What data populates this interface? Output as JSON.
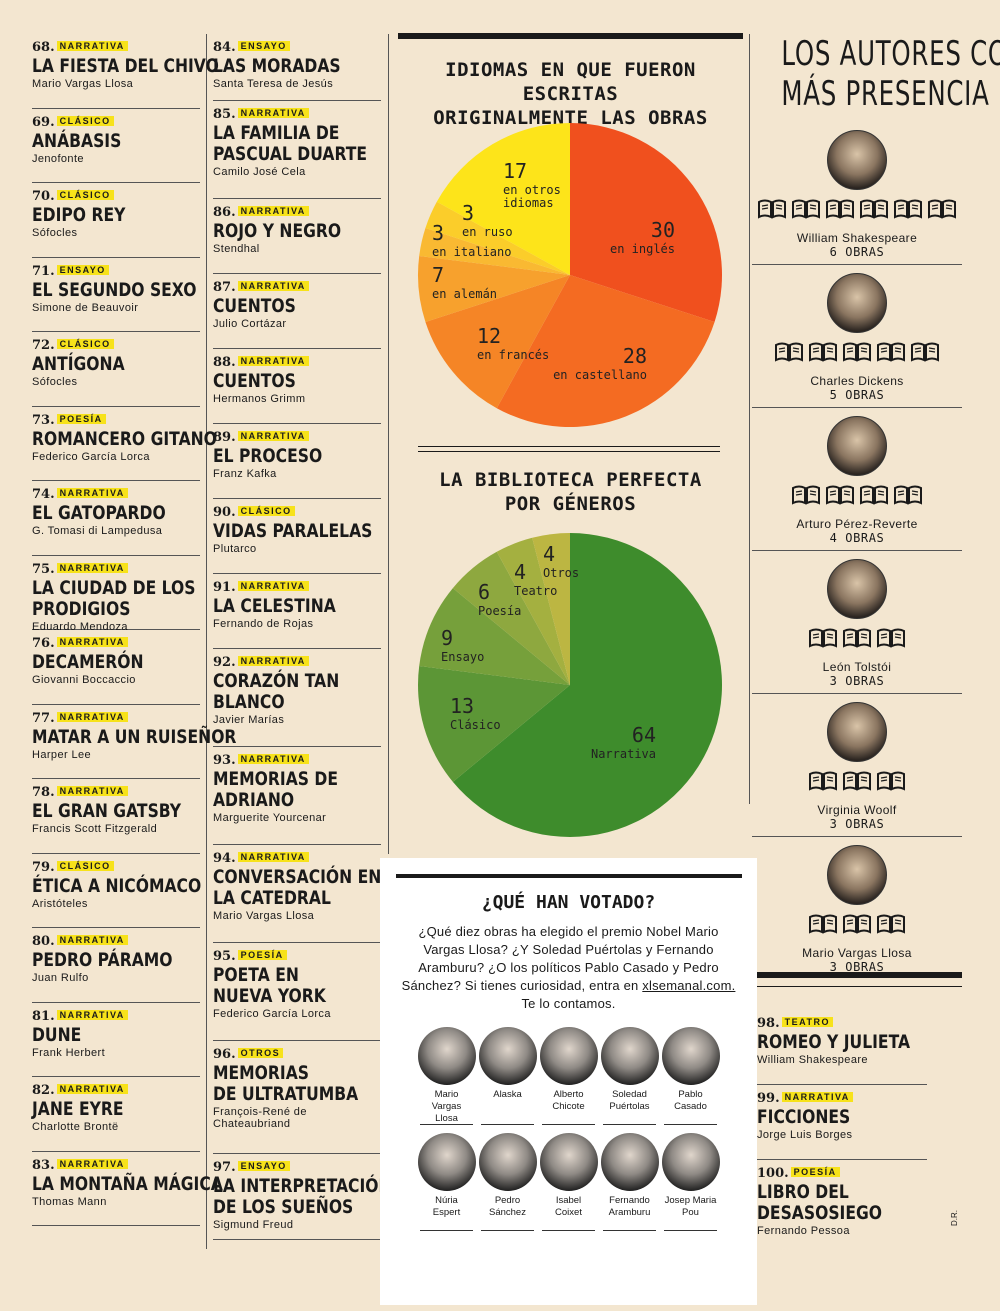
{
  "books_col1": [
    {
      "num": "68.",
      "genre": "NARRATIVA",
      "title": [
        "LA FIESTA DEL CHIVO"
      ],
      "author": "Mario Vargas Llosa"
    },
    {
      "num": "69.",
      "genre": "CLÁSICO",
      "title": [
        "ANÁBASIS"
      ],
      "author": "Jenofonte"
    },
    {
      "num": "70.",
      "genre": "CLÁSICO",
      "title": [
        "EDIPO REY"
      ],
      "author": "Sófocles"
    },
    {
      "num": "71.",
      "genre": "ENSAYO",
      "title": [
        "EL SEGUNDO SEXO"
      ],
      "author": "Simone de Beauvoir"
    },
    {
      "num": "72.",
      "genre": "CLÁSICO",
      "title": [
        "ANTÍGONA"
      ],
      "author": "Sófocles"
    },
    {
      "num": "73.",
      "genre": "POESÍA",
      "title": [
        "ROMANCERO GITANO"
      ],
      "author": "Federico García Lorca"
    },
    {
      "num": "74.",
      "genre": "NARRATIVA",
      "title": [
        "EL GATOPARDO"
      ],
      "author": "G. Tomasi di Lampedusa"
    },
    {
      "num": "75.",
      "genre": "NARRATIVA",
      "title": [
        "LA CIUDAD DE LOS",
        "PRODIGIOS"
      ],
      "author": "Eduardo Mendoza"
    },
    {
      "num": "76.",
      "genre": "NARRATIVA",
      "title": [
        "DECAMERÓN"
      ],
      "author": "Giovanni Boccaccio"
    },
    {
      "num": "77.",
      "genre": "NARRATIVA",
      "title": [
        "MATAR A UN RUISEÑOR"
      ],
      "author": "Harper Lee"
    },
    {
      "num": "78.",
      "genre": "NARRATIVA",
      "title": [
        "EL GRAN GATSBY"
      ],
      "author": "Francis Scott Fitzgerald"
    },
    {
      "num": "79.",
      "genre": "CLÁSICO",
      "title": [
        "ÉTICA A NICÓMACO"
      ],
      "author": "Aristóteles"
    },
    {
      "num": "80.",
      "genre": "NARRATIVA",
      "title": [
        "PEDRO PÁRAMO"
      ],
      "author": "Juan Rulfo"
    },
    {
      "num": "81.",
      "genre": "NARRATIVA",
      "title": [
        "DUNE"
      ],
      "author": "Frank Herbert"
    },
    {
      "num": "82.",
      "genre": "NARRATIVA",
      "title": [
        "JANE EYRE"
      ],
      "author": "Charlotte Brontë"
    },
    {
      "num": "83.",
      "genre": "NARRATIVA",
      "title": [
        "LA MONTAÑA MÁGICA"
      ],
      "author": "Thomas Mann"
    }
  ],
  "books_col2": [
    {
      "num": "84.",
      "genre": "ENSAYO",
      "title": [
        "LAS MORADAS"
      ],
      "author": "Santa Teresa de Jesús"
    },
    {
      "num": "85.",
      "genre": "NARRATIVA",
      "title": [
        "LA FAMILIA DE",
        "PASCUAL DUARTE"
      ],
      "author": "Camilo José Cela"
    },
    {
      "num": "86.",
      "genre": "NARRATIVA",
      "title": [
        "ROJO Y NEGRO"
      ],
      "author": "Stendhal"
    },
    {
      "num": "87.",
      "genre": "NARRATIVA",
      "title": [
        "CUENTOS"
      ],
      "author": "Julio Cortázar"
    },
    {
      "num": "88.",
      "genre": "NARRATIVA",
      "title": [
        "CUENTOS"
      ],
      "author": "Hermanos Grimm"
    },
    {
      "num": "89.",
      "genre": "NARRATIVA",
      "title": [
        "EL PROCESO"
      ],
      "author": "Franz Kafka"
    },
    {
      "num": "90.",
      "genre": "CLÁSICO",
      "title": [
        "VIDAS PARALELAS"
      ],
      "author": "Plutarco"
    },
    {
      "num": "91.",
      "genre": "NARRATIVA",
      "title": [
        "LA CELESTINA"
      ],
      "author": "Fernando de Rojas"
    },
    {
      "num": "92.",
      "genre": "NARRATIVA",
      "title": [
        "CORAZÓN TAN",
        "BLANCO"
      ],
      "author": "Javier Marías"
    },
    {
      "num": "93.",
      "genre": "NARRATIVA",
      "title": [
        "MEMORIAS DE",
        "ADRIANO"
      ],
      "author": "Marguerite Yourcenar"
    },
    {
      "num": "94.",
      "genre": "NARRATIVA",
      "title": [
        "CONVERSACIÓN EN",
        "LA CATEDRAL"
      ],
      "author": "Mario Vargas Llosa"
    },
    {
      "num": "95.",
      "genre": "POESÍA",
      "title": [
        "POETA EN",
        "NUEVA YORK"
      ],
      "author": "Federico García Lorca"
    },
    {
      "num": "96.",
      "genre": "OTROS",
      "title": [
        "MEMORIAS",
        "DE ULTRATUMBA"
      ],
      "author": "François-René de Chateaubriand"
    },
    {
      "num": "97.",
      "genre": "ENSAYO",
      "title": [
        "LA INTERPRETACIÓN",
        "DE LOS SUEÑOS"
      ],
      "author": "Sigmund Freud"
    }
  ],
  "books_col4": [
    {
      "num": "98.",
      "genre": "TEATRO",
      "title": [
        "ROMEO Y JULIETA"
      ],
      "author": "William Shakespeare"
    },
    {
      "num": "99.",
      "genre": "NARRATIVA",
      "title": [
        "FICCIONES"
      ],
      "author": "Jorge Luis Borges"
    },
    {
      "num": "100.",
      "genre": "POESÍA",
      "title": [
        "LIBRO DEL",
        "DESASOSIEGO"
      ],
      "author": "Fernando Pessoa"
    }
  ],
  "languages_chart": {
    "title_line1": "IDIOMAS EN QUE FUERON ESCRITAS",
    "title_line2": "ORIGINALMENTE LAS OBRAS"
  },
  "genres_chart": {
    "title_line1": "LA BIBLIOTECA PERFECTA",
    "title_line2": "POR GÉNEROS"
  },
  "chart_data": [
    {
      "type": "pie",
      "title": "IDIOMAS EN QUE FUERON ESCRITAS ORIGINALMENTE LAS OBRAS",
      "slices": [
        {
          "value": 30,
          "label": "en inglés",
          "color": "#f0501e"
        },
        {
          "value": 28,
          "label": "en castellano",
          "color": "#f46b22"
        },
        {
          "value": 12,
          "label": "en francés",
          "color": "#f58526"
        },
        {
          "value": 7,
          "label": "en alemán",
          "color": "#f7a12d"
        },
        {
          "value": 3,
          "label": "en italiano",
          "color": "#f9b932"
        },
        {
          "value": 3,
          "label": "en ruso",
          "color": "#fbcd2a"
        },
        {
          "value": 17,
          "label": "en otros idiomas",
          "color": "#fde41a"
        }
      ]
    },
    {
      "type": "pie",
      "title": "LA BIBLIOTECA PERFECTA POR GÉNEROS",
      "slices": [
        {
          "value": 64,
          "label": "Narrativa",
          "color": "#3e8c2c"
        },
        {
          "value": 13,
          "label": "Clásico",
          "color": "#5c9636"
        },
        {
          "value": 9,
          "label": "Ensayo",
          "color": "#76a03b"
        },
        {
          "value": 6,
          "label": "Poesía",
          "color": "#8ea83f"
        },
        {
          "value": 4,
          "label": "Teatro",
          "color": "#a4b040"
        },
        {
          "value": 4,
          "label": "Otros",
          "color": "#bcb642"
        }
      ]
    }
  ],
  "authors_panel": {
    "title_line1": "LOS AUTORES CON",
    "title_line2": "MÁS PRESENCIA",
    "authors": [
      {
        "name": "William Shakespeare",
        "count": "6 OBRAS",
        "books": 6
      },
      {
        "name": "Charles Dickens",
        "count": "5 OBRAS",
        "books": 5
      },
      {
        "name": "Arturo Pérez-Reverte",
        "count": "4 OBRAS",
        "books": 4
      },
      {
        "name": "León Tolstói",
        "count": "3 OBRAS",
        "books": 3
      },
      {
        "name": "Virginia Woolf",
        "count": "3 OBRAS",
        "books": 3
      },
      {
        "name": "Mario Vargas Llosa",
        "count": "3 OBRAS",
        "books": 3
      }
    ]
  },
  "voted": {
    "title": "¿QUÉ HAN VOTADO?",
    "text_before_link": "¿Qué diez obras ha elegido el premio Nobel Mario Vargas Llosa? ¿Y Soledad Puértolas y Fernando Aramburu? ¿O los políticos Pablo Casado y Pedro Sánchez? Si tienes curiosidad, entra en",
    "link": "xlsemanal.com.",
    "text_after_link": "Te lo contamos.",
    "people": [
      [
        "Mario Vargas",
        "Llosa"
      ],
      [
        "Alaska",
        ""
      ],
      [
        "Alberto",
        "Chicote"
      ],
      [
        "Soledad",
        "Puértolas"
      ],
      [
        "Pablo",
        "Casado"
      ],
      [
        "Núria",
        "Espert"
      ],
      [
        "Pedro",
        "Sánchez"
      ],
      [
        "Isabel",
        "Coixet"
      ],
      [
        "Fernando",
        "Aramburu"
      ],
      [
        "Josep Maria",
        "Pou"
      ]
    ]
  },
  "credit": "D.R."
}
